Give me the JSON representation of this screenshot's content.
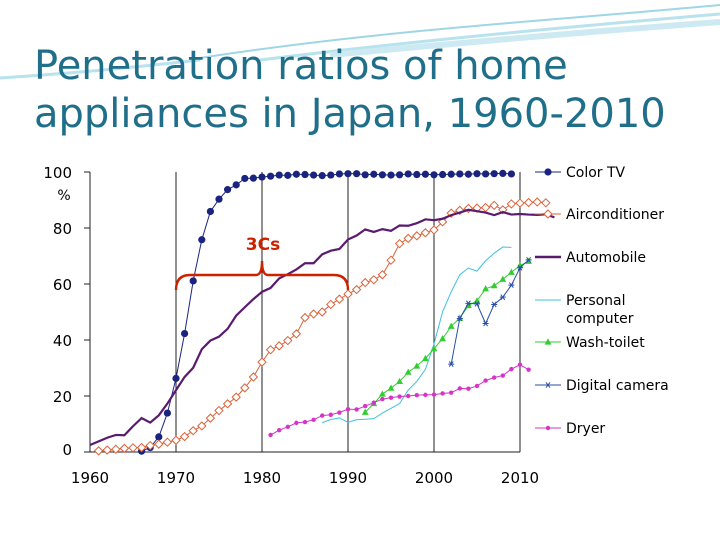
{
  "slide": {
    "title_line1": "Penetration ratios of home",
    "title_line2": "appliances in Japan, 1960-2010"
  },
  "annotation": {
    "label": "3Cs",
    "color": "#cc2200",
    "span_years": [
      1970,
      1990
    ]
  },
  "chart_data": {
    "type": "line",
    "title": "Penetration ratios of home appliances in Japan, 1960-2010",
    "ylabel": "%",
    "xlim": [
      1960,
      2010
    ],
    "ylim": [
      0,
      100
    ],
    "x_ticks": [
      1960,
      1970,
      1980,
      1990,
      2000,
      2010
    ],
    "y_ticks": [
      0,
      20,
      40,
      60,
      80,
      100
    ],
    "y_unit_label": "%",
    "grid": {
      "vertical": true,
      "horizontal": false
    },
    "legend_position": "right",
    "series": [
      {
        "name": "Color TV",
        "color": "#1a237e",
        "marker": "circle",
        "points": [
          [
            1966,
            0.3
          ],
          [
            1967,
            1.6
          ],
          [
            1968,
            5.4
          ],
          [
            1969,
            13.9
          ],
          [
            1970,
            26.3
          ],
          [
            1971,
            42.3
          ],
          [
            1972,
            61.1
          ],
          [
            1973,
            75.8
          ],
          [
            1974,
            85.9
          ],
          [
            1975,
            90.3
          ],
          [
            1976,
            93.7
          ],
          [
            1977,
            95.4
          ],
          [
            1978,
            97.7
          ],
          [
            1979,
            97.8
          ],
          [
            1980,
            98.2
          ],
          [
            1981,
            98.5
          ],
          [
            1982,
            98.9
          ],
          [
            1983,
            98.8
          ],
          [
            1984,
            99.2
          ],
          [
            1985,
            99.1
          ],
          [
            1986,
            98.9
          ],
          [
            1987,
            98.7
          ],
          [
            1988,
            98.9
          ],
          [
            1989,
            99.3
          ],
          [
            1990,
            99.4
          ],
          [
            1991,
            99.4
          ],
          [
            1992,
            99.0
          ],
          [
            1993,
            99.2
          ],
          [
            1994,
            99.0
          ],
          [
            1995,
            98.9
          ],
          [
            1996,
            99.0
          ],
          [
            1997,
            99.3
          ],
          [
            1998,
            99.1
          ],
          [
            1999,
            99.2
          ],
          [
            2000,
            99.0
          ],
          [
            2001,
            99.1
          ],
          [
            2002,
            99.2
          ],
          [
            2003,
            99.3
          ],
          [
            2004,
            99.2
          ],
          [
            2005,
            99.4
          ],
          [
            2006,
            99.3
          ],
          [
            2007,
            99.4
          ],
          [
            2008,
            99.5
          ],
          [
            2009,
            99.3
          ]
        ]
      },
      {
        "name": "Airconditioner",
        "color": "#d9623a",
        "marker": "diamond-open",
        "points": [
          [
            1961,
            0.4
          ],
          [
            1962,
            0.7
          ],
          [
            1963,
            1.0
          ],
          [
            1964,
            1.3
          ],
          [
            1965,
            1.5
          ],
          [
            1966,
            1.6
          ],
          [
            1967,
            2.3
          ],
          [
            1968,
            2.8
          ],
          [
            1969,
            3.5
          ],
          [
            1970,
            4.2
          ],
          [
            1971,
            5.5
          ],
          [
            1972,
            7.6
          ],
          [
            1973,
            9.3
          ],
          [
            1974,
            12.1
          ],
          [
            1975,
            14.8
          ],
          [
            1976,
            17.2
          ],
          [
            1977,
            19.6
          ],
          [
            1978,
            22.9
          ],
          [
            1979,
            26.8
          ],
          [
            1980,
            32.1
          ],
          [
            1981,
            36.5
          ],
          [
            1982,
            37.9
          ],
          [
            1983,
            39.8
          ],
          [
            1984,
            42.2
          ],
          [
            1985,
            48.0
          ],
          [
            1986,
            49.3
          ],
          [
            1987,
            50.0
          ],
          [
            1988,
            52.7
          ],
          [
            1989,
            54.6
          ],
          [
            1990,
            56.4
          ],
          [
            1991,
            58.0
          ],
          [
            1992,
            60.5
          ],
          [
            1993,
            61.5
          ],
          [
            1994,
            63.3
          ],
          [
            1995,
            68.5
          ],
          [
            1996,
            74.4
          ],
          [
            1997,
            76.3
          ],
          [
            1998,
            77.2
          ],
          [
            1999,
            78.3
          ],
          [
            2000,
            79.3
          ],
          [
            2001,
            82.2
          ],
          [
            2002,
            85.3
          ],
          [
            2003,
            86.3
          ],
          [
            2004,
            87.0
          ],
          [
            2005,
            87.1
          ],
          [
            2006,
            87.3
          ],
          [
            2007,
            88.1
          ],
          [
            2008,
            86.5
          ],
          [
            2009,
            88.6
          ],
          [
            2010,
            88.9
          ],
          [
            2011,
            89.1
          ],
          [
            2012,
            89.3
          ],
          [
            2013,
            89.0
          ]
        ]
      },
      {
        "name": "Automobile",
        "color": "#5a1a6e",
        "marker": "none",
        "points": [
          [
            1960,
            2.5
          ],
          [
            1961,
            3.8
          ],
          [
            1962,
            5.1
          ],
          [
            1963,
            6.1
          ],
          [
            1964,
            6.0
          ],
          [
            1965,
            9.2
          ],
          [
            1966,
            12.1
          ],
          [
            1967,
            10.5
          ],
          [
            1968,
            13.1
          ],
          [
            1969,
            17.3
          ],
          [
            1970,
            22.1
          ],
          [
            1971,
            26.8
          ],
          [
            1972,
            30.1
          ],
          [
            1973,
            36.7
          ],
          [
            1974,
            39.8
          ],
          [
            1975,
            41.2
          ],
          [
            1976,
            44.0
          ],
          [
            1977,
            48.7
          ],
          [
            1978,
            51.7
          ],
          [
            1979,
            54.6
          ],
          [
            1980,
            57.2
          ],
          [
            1981,
            58.6
          ],
          [
            1982,
            62.0
          ],
          [
            1983,
            63.5
          ],
          [
            1984,
            65.2
          ],
          [
            1985,
            67.4
          ],
          [
            1986,
            67.4
          ],
          [
            1987,
            70.6
          ],
          [
            1988,
            71.9
          ],
          [
            1989,
            72.5
          ],
          [
            1990,
            75.9
          ],
          [
            1991,
            77.3
          ],
          [
            1992,
            79.5
          ],
          [
            1993,
            78.6
          ],
          [
            1994,
            79.6
          ],
          [
            1995,
            79.0
          ],
          [
            1996,
            80.9
          ],
          [
            1997,
            80.8
          ],
          [
            1998,
            81.7
          ],
          [
            1999,
            83.1
          ],
          [
            2000,
            82.8
          ],
          [
            2001,
            83.3
          ],
          [
            2002,
            84.6
          ],
          [
            2003,
            85.5
          ],
          [
            2004,
            86.5
          ],
          [
            2005,
            86.0
          ],
          [
            2006,
            85.5
          ],
          [
            2007,
            84.6
          ],
          [
            2008,
            85.7
          ],
          [
            2009,
            84.8
          ],
          [
            2010,
            85.0
          ],
          [
            2011,
            84.8
          ],
          [
            2012,
            84.7
          ],
          [
            2013,
            84.9
          ],
          [
            2014,
            83.8
          ]
        ]
      },
      {
        "name": "Personal computer",
        "color": "#3fc0e0",
        "marker": "none",
        "points": [
          [
            1987,
            10.5
          ],
          [
            1988,
            11.6
          ],
          [
            1989,
            12.2
          ],
          [
            1990,
            10.6
          ],
          [
            1991,
            11.5
          ],
          [
            1992,
            11.7
          ],
          [
            1993,
            11.9
          ],
          [
            1994,
            13.9
          ],
          [
            1995,
            15.6
          ],
          [
            1996,
            17.3
          ],
          [
            1997,
            22.1
          ],
          [
            1998,
            25.2
          ],
          [
            1999,
            29.5
          ],
          [
            2000,
            38.6
          ],
          [
            2001,
            50.1
          ],
          [
            2002,
            57.2
          ],
          [
            2003,
            63.3
          ],
          [
            2004,
            65.7
          ],
          [
            2005,
            64.6
          ],
          [
            2006,
            68.3
          ],
          [
            2007,
            71.0
          ],
          [
            2008,
            73.2
          ],
          [
            2009,
            73.1
          ]
        ]
      },
      {
        "name": "Wash-toilet",
        "color": "#33cc33",
        "marker": "triangle",
        "points": [
          [
            1992,
            14.2
          ],
          [
            1993,
            17.3
          ],
          [
            1994,
            20.7
          ],
          [
            1995,
            22.8
          ],
          [
            1996,
            25.2
          ],
          [
            1997,
            28.5
          ],
          [
            1998,
            30.7
          ],
          [
            1999,
            33.4
          ],
          [
            2000,
            36.9
          ],
          [
            2001,
            40.5
          ],
          [
            2002,
            44.9
          ],
          [
            2003,
            47.8
          ],
          [
            2004,
            52.3
          ],
          [
            2005,
            54.0
          ],
          [
            2006,
            58.3
          ],
          [
            2007,
            59.4
          ],
          [
            2008,
            61.7
          ],
          [
            2009,
            64.2
          ],
          [
            2010,
            66.6
          ],
          [
            2011,
            68.1
          ]
        ]
      },
      {
        "name": "Digital camera",
        "color": "#2a4fa8",
        "marker": "asterisk",
        "points": [
          [
            2002,
            31.4
          ],
          [
            2003,
            47.7
          ],
          [
            2004,
            53.1
          ],
          [
            2005,
            52.9
          ],
          [
            2006,
            45.9
          ],
          [
            2007,
            52.7
          ],
          [
            2008,
            55.3
          ],
          [
            2009,
            59.6
          ],
          [
            2010,
            65.8
          ],
          [
            2011,
            68.6
          ]
        ]
      },
      {
        "name": "Dryer",
        "color": "#d633c8",
        "marker": "dot",
        "points": [
          [
            1981,
            6.1
          ],
          [
            1982,
            7.8
          ],
          [
            1983,
            9.0
          ],
          [
            1984,
            10.4
          ],
          [
            1985,
            10.7
          ],
          [
            1986,
            11.5
          ],
          [
            1987,
            13.0
          ],
          [
            1988,
            13.3
          ],
          [
            1989,
            14.1
          ],
          [
            1990,
            15.3
          ],
          [
            1991,
            15.2
          ],
          [
            1992,
            16.4
          ],
          [
            1993,
            17.6
          ],
          [
            1994,
            18.9
          ],
          [
            1995,
            19.4
          ],
          [
            1996,
            19.8
          ],
          [
            1997,
            20.0
          ],
          [
            1998,
            20.3
          ],
          [
            1999,
            20.4
          ],
          [
            2000,
            20.5
          ],
          [
            2001,
            20.9
          ],
          [
            2002,
            21.2
          ],
          [
            2003,
            22.7
          ],
          [
            2004,
            22.6
          ],
          [
            2005,
            23.6
          ],
          [
            2006,
            25.5
          ],
          [
            2007,
            26.6
          ],
          [
            2008,
            27.3
          ],
          [
            2009,
            29.6
          ],
          [
            2010,
            31.2
          ],
          [
            2011,
            29.4
          ]
        ]
      }
    ]
  }
}
